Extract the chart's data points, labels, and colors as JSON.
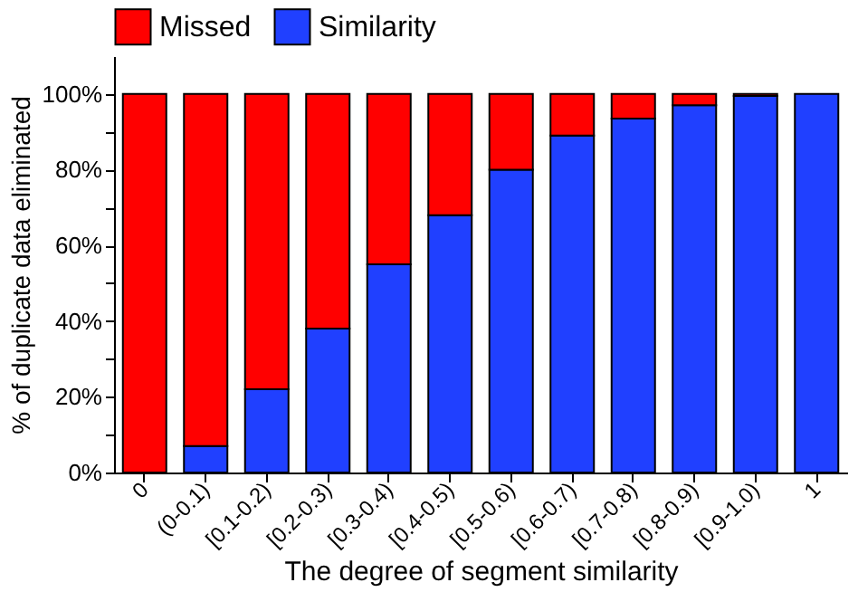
{
  "chart_data": {
    "type": "bar",
    "stacked": true,
    "xlabel": "The degree of segment similarity",
    "ylabel": "% of duplicate data eliminated",
    "categories": [
      "0",
      "(0-0.1)",
      "[0.1-0.2)",
      "[0.2-0.3)",
      "[0.3-0.4)",
      "[0.4-0.5)",
      "[0.5-0.6)",
      "[0.6-0.7)",
      "[0.7-0.8)",
      "[0.8-0.9)",
      "[0.9-1.0)",
      "1"
    ],
    "series": [
      {
        "name": "Similarity",
        "color": "#2040ff",
        "values": [
          0,
          7,
          22,
          38,
          55,
          68,
          80,
          89,
          93.5,
          97,
          99.5,
          100
        ]
      },
      {
        "name": "Missed",
        "color": "#ff0000",
        "values": [
          100,
          93,
          78,
          62,
          45,
          32,
          20,
          11,
          6.5,
          3,
          0.5,
          null
        ]
      }
    ],
    "ylim": [
      0,
      110
    ],
    "yticks": [
      {
        "value": 0,
        "label": "0%"
      },
      {
        "value": 10,
        "label": null
      },
      {
        "value": 20,
        "label": "20%"
      },
      {
        "value": 30,
        "label": null
      },
      {
        "value": 40,
        "label": "40%"
      },
      {
        "value": 50,
        "label": null
      },
      {
        "value": 60,
        "label": "60%"
      },
      {
        "value": 70,
        "label": null
      },
      {
        "value": 80,
        "label": "80%"
      },
      {
        "value": 90,
        "label": null
      },
      {
        "value": 100,
        "label": "100%"
      }
    ],
    "legend": "top",
    "grid": false
  }
}
